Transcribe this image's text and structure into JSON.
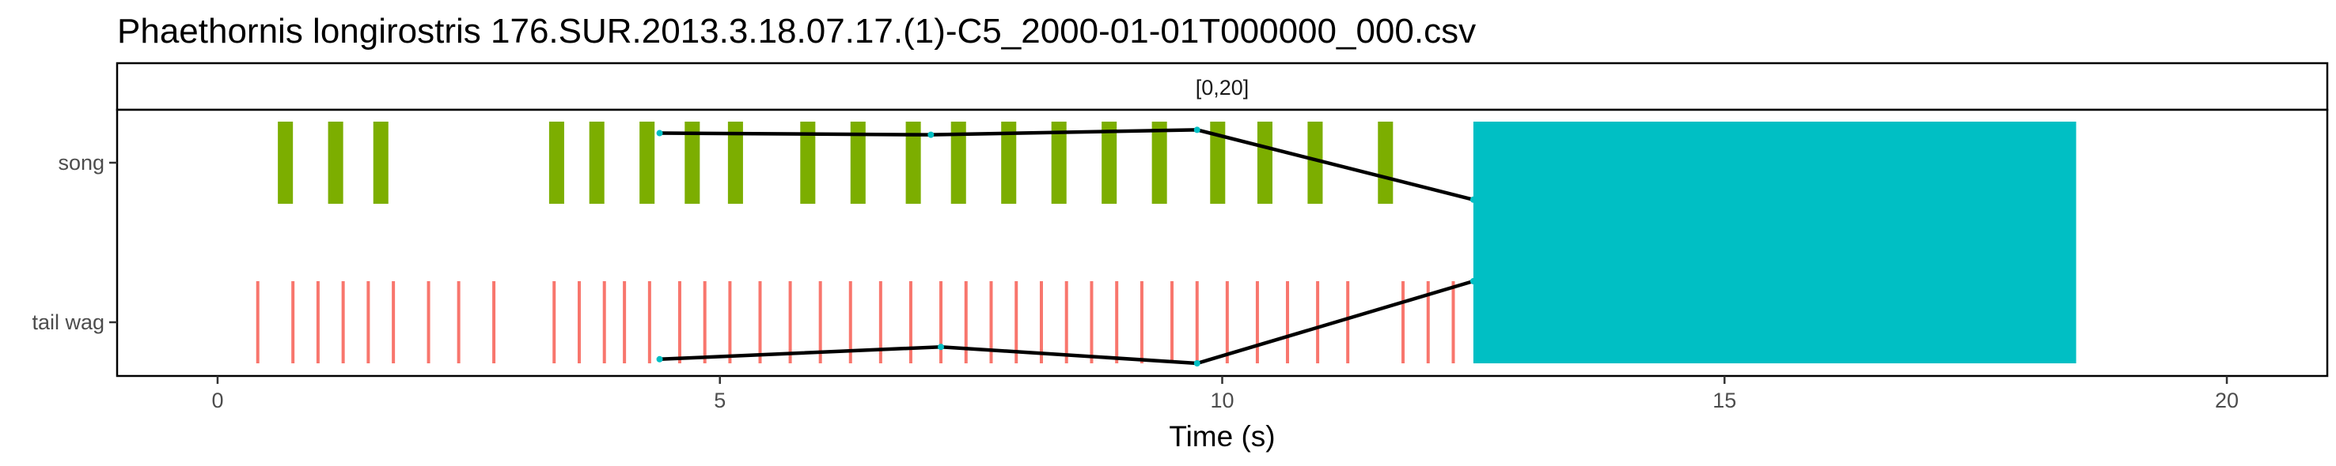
{
  "chart_data": {
    "type": "event-timeline",
    "title": "Phaethornis longirostris   176.SUR.2013.3.18.07.17.(1)-C5_2000-01-01T000000_000.csv",
    "facet_label": "[0,20]",
    "xlabel": "Time (s)",
    "ylabel": "",
    "xlim": [
      -1,
      21
    ],
    "x_ticks": [
      0,
      5,
      10,
      15,
      20
    ],
    "categories": [
      "song",
      "tail wag"
    ],
    "grid": false,
    "series": [
      {
        "name": "song",
        "color": "#7CAE00",
        "events": [
          [
            0.6,
            0.75
          ],
          [
            1.1,
            1.25
          ],
          [
            1.55,
            1.7
          ],
          [
            3.3,
            3.45
          ],
          [
            3.7,
            3.85
          ],
          [
            4.2,
            4.35
          ],
          [
            4.65,
            4.8
          ],
          [
            5.08,
            5.23
          ],
          [
            5.8,
            5.95
          ],
          [
            6.3,
            6.45
          ],
          [
            6.85,
            7.0
          ],
          [
            7.3,
            7.45
          ],
          [
            7.8,
            7.95
          ],
          [
            8.3,
            8.45
          ],
          [
            8.8,
            8.95
          ],
          [
            9.3,
            9.45
          ],
          [
            9.88,
            10.03
          ],
          [
            10.35,
            10.5
          ],
          [
            10.85,
            11.0
          ],
          [
            11.55,
            11.7
          ]
        ]
      },
      {
        "name": "tail wag",
        "color": "#F8766D",
        "events": [
          0.4,
          0.75,
          1.0,
          1.25,
          1.5,
          1.75,
          2.1,
          2.4,
          2.75,
          3.35,
          3.6,
          3.85,
          4.05,
          4.3,
          4.6,
          4.85,
          5.1,
          5.4,
          5.7,
          6.0,
          6.3,
          6.6,
          6.9,
          7.2,
          7.45,
          7.7,
          7.95,
          8.2,
          8.45,
          8.7,
          8.95,
          9.2,
          9.5,
          9.75,
          10.05,
          10.35,
          10.65,
          10.95,
          11.25,
          11.8,
          12.05,
          12.3
        ]
      }
    ],
    "highlight": {
      "x0": 12.5,
      "x1": 18.5,
      "color": "#00BFC4"
    },
    "lines": [
      {
        "category": "song",
        "points": [
          [
            4.4,
            0.86
          ],
          [
            7.1,
            0.84
          ],
          [
            9.75,
            0.9
          ],
          [
            12.5,
            0.05
          ]
        ]
      },
      {
        "category": "tail wag",
        "points": [
          [
            4.4,
            0.05
          ],
          [
            7.2,
            0.2
          ],
          [
            9.75,
            0.0
          ],
          [
            12.5,
            1.0
          ]
        ]
      }
    ],
    "line_color": "#000000",
    "point_color": "#00BFC4"
  }
}
